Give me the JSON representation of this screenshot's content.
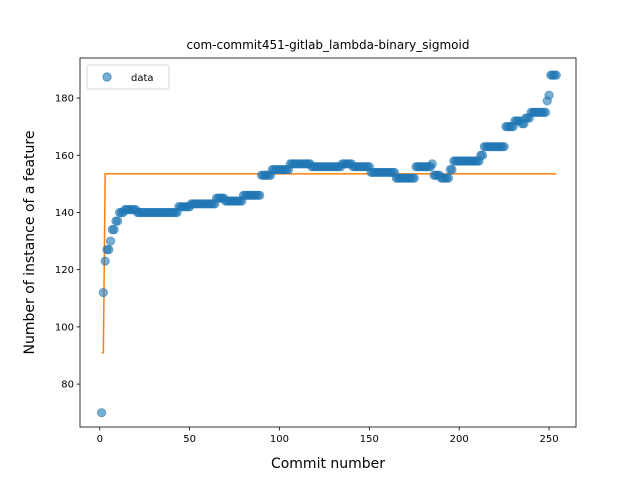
{
  "chart_data": {
    "type": "scatter",
    "title": "com-commit451-gitlab_lambda-binary_sigmoid",
    "xlabel": "Commit number",
    "ylabel": "Number of instance of a feature",
    "xlim": [
      -11,
      265
    ],
    "ylim": [
      65,
      194
    ],
    "xticks": [
      0,
      50,
      100,
      150,
      200,
      250
    ],
    "yticks": [
      80,
      100,
      120,
      140,
      160,
      180
    ],
    "grid": false,
    "legend": {
      "placement": "top-left",
      "entries": [
        {
          "label": "data"
        }
      ]
    },
    "colors": {
      "data": "#1f77b4",
      "fit": "#ff7f0e"
    },
    "series": [
      {
        "name": "data",
        "kind": "scatter",
        "segments": [
          {
            "from": 1,
            "to": 1,
            "value": 70
          },
          {
            "from": 2,
            "to": 2,
            "value": 112
          },
          {
            "from": 3,
            "to": 3,
            "value": 123
          },
          {
            "from": 4,
            "to": 5,
            "value": 127
          },
          {
            "from": 6,
            "to": 6,
            "value": 130
          },
          {
            "from": 7,
            "to": 8,
            "value": 134
          },
          {
            "from": 9,
            "to": 10,
            "value": 137
          },
          {
            "from": 11,
            "to": 13,
            "value": 140
          },
          {
            "from": 14,
            "to": 20,
            "value": 141
          },
          {
            "from": 21,
            "to": 43,
            "value": 140
          },
          {
            "from": 44,
            "to": 50,
            "value": 142
          },
          {
            "from": 51,
            "to": 64,
            "value": 143
          },
          {
            "from": 65,
            "to": 69,
            "value": 145
          },
          {
            "from": 70,
            "to": 79,
            "value": 144
          },
          {
            "from": 80,
            "to": 89,
            "value": 146
          },
          {
            "from": 90,
            "to": 95,
            "value": 153
          },
          {
            "from": 96,
            "to": 105,
            "value": 155
          },
          {
            "from": 106,
            "to": 117,
            "value": 157
          },
          {
            "from": 118,
            "to": 134,
            "value": 156
          },
          {
            "from": 135,
            "to": 140,
            "value": 157
          },
          {
            "from": 141,
            "to": 150,
            "value": 156
          },
          {
            "from": 151,
            "to": 164,
            "value": 154
          },
          {
            "from": 165,
            "to": 175,
            "value": 152
          },
          {
            "from": 176,
            "to": 184,
            "value": 156
          },
          {
            "from": 185,
            "to": 185,
            "value": 157
          },
          {
            "from": 186,
            "to": 189,
            "value": 153
          },
          {
            "from": 190,
            "to": 194,
            "value": 152
          },
          {
            "from": 195,
            "to": 196,
            "value": 155
          },
          {
            "from": 197,
            "to": 211,
            "value": 158
          },
          {
            "from": 212,
            "to": 213,
            "value": 160
          },
          {
            "from": 214,
            "to": 216,
            "value": 163
          },
          {
            "from": 217,
            "to": 225,
            "value": 163
          },
          {
            "from": 226,
            "to": 230,
            "value": 170
          },
          {
            "from": 231,
            "to": 234,
            "value": 172
          },
          {
            "from": 235,
            "to": 236,
            "value": 171
          },
          {
            "from": 237,
            "to": 239,
            "value": 173
          },
          {
            "from": 240,
            "to": 248,
            "value": 175
          },
          {
            "from": 249,
            "to": 249,
            "value": 179
          },
          {
            "from": 250,
            "to": 250,
            "value": 181
          },
          {
            "from": 251,
            "to": 254,
            "value": 188
          }
        ]
      },
      {
        "name": "",
        "kind": "line",
        "x": [
          1,
          2,
          3,
          254
        ],
        "y": [
          91,
          91,
          153.5,
          153.5
        ]
      }
    ]
  }
}
